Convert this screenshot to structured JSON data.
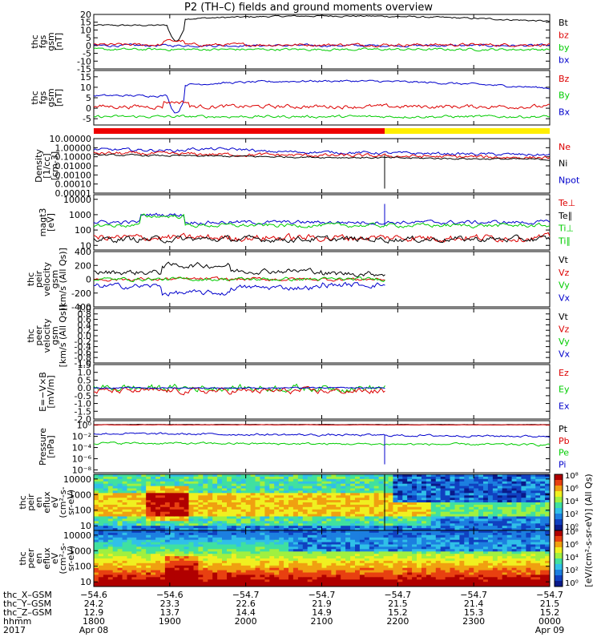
{
  "title": "P2 (TH–C) fields and ground moments overview",
  "panels": [
    {
      "id": "fgs",
      "ylabel": [
        "thc",
        "fgs",
        "gsm",
        "[nT]"
      ],
      "ticks": [
        "20",
        "15",
        "10",
        "5",
        "0",
        "-5",
        "-10",
        "-15"
      ],
      "tickvals": [
        20,
        15,
        10,
        5,
        0,
        -5,
        -10,
        -15
      ],
      "ylim": [
        -15,
        20
      ],
      "legend": [
        {
          "t": "Bt",
          "c": "#000000"
        },
        {
          "t": "bz",
          "c": "#dd0000"
        },
        {
          "t": "by",
          "c": "#00cc00"
        },
        {
          "t": "bx",
          "c": "#0000cc"
        }
      ]
    },
    {
      "id": "fgs_dsl",
      "ylabel": [
        "thc",
        "fgs",
        "gsm",
        "[nT]"
      ],
      "ticks": [
        "15",
        "10",
        "5",
        "0",
        "-5"
      ],
      "tickvals": [
        15,
        10,
        5,
        0,
        -5
      ],
      "ylim": [
        -8,
        18
      ],
      "legend": [
        {
          "t": "Bz",
          "c": "#dd0000"
        },
        {
          "t": "By",
          "c": "#00cc00"
        },
        {
          "t": "Bx",
          "c": "#0000cc"
        }
      ]
    },
    {
      "id": "density",
      "ylabel": [
        "Density",
        "[1/cc]",
        "[cm-3]"
      ],
      "ticks": [
        "10.00000",
        "1.00000",
        "0.10000",
        "0.01000",
        "0.00100",
        "0.00010",
        "0.00001"
      ],
      "tickvals": [
        1,
        0,
        -1,
        -2,
        -3,
        -4,
        -5
      ],
      "ylim": [
        -5,
        1
      ],
      "legend": [
        {
          "t": "Ne",
          "c": "#dd0000"
        },
        {
          "t": "Ni",
          "c": "#000000"
        },
        {
          "t": "Npot",
          "c": "#0000cc"
        }
      ]
    },
    {
      "id": "temp",
      "ylabel": [
        "magt3",
        "[eV]"
      ],
      "ticks": [
        "10000",
        "1000",
        "100",
        "10"
      ],
      "tickvals": [
        4,
        3,
        2,
        1
      ],
      "ylim": [
        0.7,
        4.3
      ],
      "legend": [
        {
          "t": "Te⊥",
          "c": "#dd0000"
        },
        {
          "t": "Te∥",
          "c": "#000000"
        },
        {
          "t": "Ti⊥",
          "c": "#00cc00"
        },
        {
          "t": "Ti∥",
          "c": "#00cc00"
        }
      ]
    },
    {
      "id": "vpeir",
      "ylabel": [
        "thc",
        "peir",
        "velocity",
        "gsm",
        "[km/s (All Qs)]"
      ],
      "ticks": [
        "400",
        "200",
        "0",
        "-200",
        "-400"
      ],
      "tickvals": [
        400,
        200,
        0,
        -200,
        -400
      ],
      "ylim": [
        -400,
        400
      ],
      "legend": [
        {
          "t": "Vt",
          "c": "#000000"
        },
        {
          "t": "Vz",
          "c": "#dd0000"
        },
        {
          "t": "Vy",
          "c": "#00cc00"
        },
        {
          "t": "Vx",
          "c": "#0000cc"
        }
      ]
    },
    {
      "id": "vpeer",
      "ylabel": [
        "thc",
        "peer",
        "velocity",
        "gsm",
        "[km/s (All Qs)]"
      ],
      "ticks": [
        "1.0",
        "0.8",
        "0.6",
        "0.4",
        "0.2",
        "0.0",
        "-0.2",
        "-0.4",
        "-0.6",
        "-0.8",
        "-1.0"
      ],
      "tickvals": [
        1,
        0.8,
        0.6,
        0.4,
        0.2,
        0,
        -0.2,
        -0.4,
        -0.6,
        -0.8,
        -1
      ],
      "ylim": [
        -1,
        1
      ],
      "legend": [
        {
          "t": "Vt",
          "c": "#000000"
        },
        {
          "t": "Vz",
          "c": "#dd0000"
        },
        {
          "t": "Vy",
          "c": "#00cc00"
        },
        {
          "t": "Vx",
          "c": "#0000cc"
        }
      ]
    },
    {
      "id": "efield",
      "ylabel": [
        "E=−V×B",
        "[mV/m]"
      ],
      "ticks": [
        "1.5",
        "1.0",
        "0.5",
        "0.0",
        "-0.5",
        "-1.0",
        "-1.5",
        "-2.0"
      ],
      "tickvals": [
        1.5,
        1,
        0.5,
        0,
        -0.5,
        -1,
        -1.5,
        -2
      ],
      "ylim": [
        -2,
        1.5
      ],
      "legend": [
        {
          "t": "Ez",
          "c": "#dd0000"
        },
        {
          "t": "Ey",
          "c": "#00cc00"
        },
        {
          "t": "Ex",
          "c": "#0000cc"
        }
      ]
    },
    {
      "id": "pressure",
      "ylabel": [
        "Pressure",
        "[nPa]"
      ],
      "ticks": [
        "10⁰",
        "10⁻²",
        "10⁻⁴",
        "10⁻⁶",
        "10⁻⁸"
      ],
      "tickvals": [
        0,
        -2,
        -4,
        -6,
        -8
      ],
      "ylim": [
        -8.5,
        0.8
      ],
      "legend": [
        {
          "t": "Pt",
          "c": "#000000"
        },
        {
          "t": "Pb",
          "c": "#dd0000"
        },
        {
          "t": "Pe",
          "c": "#00cc00"
        },
        {
          "t": "Pi",
          "c": "#0000cc"
        }
      ]
    },
    {
      "id": "peir_spec",
      "ylabel": [
        "thc",
        "peir",
        "en",
        "eflux",
        "eV",
        "(cm²-s-",
        "sr-eV)"
      ],
      "ticks": [
        "10000",
        "1000",
        "100",
        "10"
      ],
      "tickvals": [
        4,
        3,
        2,
        1
      ],
      "ylim": [
        0.7,
        4.3
      ],
      "legend": []
    },
    {
      "id": "peer_spec",
      "ylabel": [
        "thc",
        "peer",
        "en",
        "eflux",
        "eV",
        "(cm²-s-",
        "sr-eV)"
      ],
      "ticks": [
        "10000",
        "1000",
        "100",
        "10"
      ],
      "tickvals": [
        4,
        3,
        2,
        1
      ],
      "ylim": [
        0.7,
        4.3
      ],
      "legend": []
    }
  ],
  "colorbar": {
    "label": "[eV/(cm²-s-sr-eV)] (All Qs)",
    "ticks": [
      "10⁸",
      "10⁶",
      "10⁴",
      "10²",
      "10⁰",
      "10⁸",
      "10⁶",
      "10⁴",
      "10²",
      "10⁰"
    ]
  },
  "xaxis": {
    "rows": [
      {
        "label": "thc_X–GSM",
        "vals": [
          "−54.6",
          "−54.6",
          "−54.7",
          "−54.7",
          "−54.7",
          "−54.7",
          "−54.7"
        ]
      },
      {
        "label": "thc_Y–GSM",
        "vals": [
          "24.2",
          "23.3",
          "22.6",
          "21.9",
          "21.5",
          "21.4",
          "21.5"
        ]
      },
      {
        "label": "thc_Z–GSM",
        "vals": [
          "12.9",
          "13.7",
          "14.4",
          "14.9",
          "15.2",
          "15.3",
          "15.2"
        ]
      },
      {
        "label": "hhmm",
        "vals": [
          "1800",
          "1900",
          "2000",
          "2100",
          "2200",
          "2300",
          "0000"
        ]
      }
    ],
    "year": "2017",
    "date_start": "Apr 08",
    "date_end": "Apr 09"
  },
  "chart_data": {
    "type": "line",
    "title": "P2 (TH–C) fields and ground moments overview",
    "x": [
      "1800",
      "1900",
      "2000",
      "2100",
      "2200",
      "2300",
      "0000"
    ],
    "xlabel": "hhmm",
    "series": [
      {
        "name": "Bt",
        "panel": "fgs",
        "values": [
          13,
          10,
          15,
          16,
          18,
          18,
          16
        ]
      },
      {
        "name": "bz",
        "panel": "fgs",
        "values": [
          0.5,
          1,
          0,
          0.5,
          0,
          0,
          -0.5
        ]
      },
      {
        "name": "by",
        "panel": "fgs",
        "values": [
          -2,
          -3,
          -2,
          -2,
          -2,
          -2,
          -2
        ]
      },
      {
        "name": "Bx",
        "panel": "fgs_dsl",
        "values": [
          6,
          3,
          10,
          11,
          13,
          12,
          9
        ]
      },
      {
        "name": "Bz",
        "panel": "fgs_dsl",
        "values": [
          0,
          2,
          1,
          1,
          0.5,
          0.5,
          -0.5
        ]
      },
      {
        "name": "By",
        "panel": "fgs_dsl",
        "values": [
          -4,
          -5,
          -4,
          -4,
          -4,
          -4,
          -4
        ]
      },
      {
        "name": "Ne",
        "panel": "density",
        "values": [
          0.5,
          1.0,
          0.3,
          0.3,
          0.15,
          0.15,
          0.1
        ]
      },
      {
        "name": "Npot",
        "panel": "density",
        "values": [
          0.8,
          1.5,
          0.4,
          0.5,
          0.2,
          0.25,
          0.15
        ]
      },
      {
        "name": "Vt",
        "panel": "vpeir",
        "values": [
          150,
          100,
          250,
          100,
          180,
          null,
          null
        ]
      },
      {
        "name": "Vx",
        "panel": "vpeir",
        "values": [
          -120,
          -50,
          -250,
          -80,
          -150,
          null,
          null
        ]
      }
    ]
  }
}
